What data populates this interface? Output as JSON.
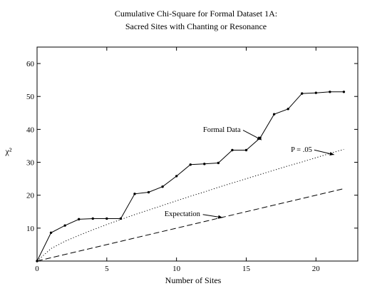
{
  "chart_data": {
    "type": "line",
    "title": "Cumulative Chi-Square for Formal Dataset 1A:",
    "subtitle": "Sacred Sites with Chanting or Resonance",
    "xlabel": "Number of Sites",
    "ylabel": "χ²",
    "xlim": [
      0,
      23
    ],
    "ylim": [
      0,
      65
    ],
    "xticks": [
      0,
      5,
      10,
      15,
      20
    ],
    "yticks": [
      10,
      20,
      30,
      40,
      50,
      60
    ],
    "grid": false,
    "legend": "none",
    "series": [
      {
        "name": "Formal Data",
        "style": "solid-with-markers",
        "x": [
          0,
          1,
          2,
          3,
          4,
          5,
          6,
          7,
          8,
          9,
          10,
          11,
          12,
          13,
          14,
          15,
          16,
          17,
          18,
          19,
          20,
          21,
          22
        ],
        "y": [
          0,
          8.6,
          10.8,
          12.7,
          12.9,
          12.9,
          12.9,
          20.4,
          20.9,
          22.6,
          25.8,
          29.3,
          29.5,
          29.8,
          33.7,
          33.7,
          37.4,
          44.6,
          46.2,
          50.9,
          51.1,
          51.4,
          51.4
        ]
      },
      {
        "name": "P = .05",
        "style": "dotted",
        "x": [
          0,
          1,
          2,
          3,
          4,
          5,
          6,
          7,
          8,
          9,
          10,
          11,
          12,
          13,
          14,
          15,
          16,
          17,
          18,
          19,
          20,
          21,
          22
        ],
        "y": [
          0,
          3.8,
          6.0,
          7.8,
          9.5,
          11.1,
          12.6,
          14.1,
          15.5,
          16.9,
          18.3,
          19.7,
          21.0,
          22.4,
          23.7,
          25.0,
          26.3,
          27.6,
          28.9,
          30.1,
          31.4,
          32.7,
          33.9
        ]
      },
      {
        "name": "Expectation",
        "style": "dashed",
        "x": [
          0,
          22
        ],
        "y": [
          0,
          22
        ]
      }
    ],
    "annotations": [
      {
        "text": "Formal  Data",
        "series": "Formal Data"
      },
      {
        "text": "P  =  .05",
        "series": "P = .05"
      },
      {
        "text": "Expectation",
        "series": "Expectation"
      }
    ]
  }
}
